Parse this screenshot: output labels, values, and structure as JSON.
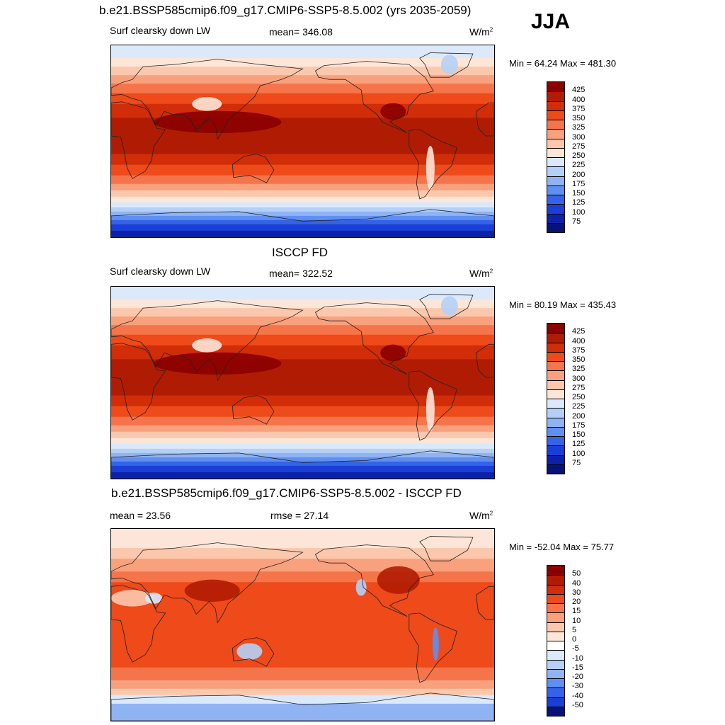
{
  "season": "JJA",
  "panels": [
    {
      "title": "b.e21.BSSP585cmip6.f09_g17.CMIP6-SSP5-8.5.002 (yrs 2035-2059)",
      "left_label": "Surf clearsky down LW",
      "center_label": "mean= 346.08",
      "units": "W/m",
      "units_sup": "2",
      "minmax": "Min =  64.24 Max = 481.30",
      "colorbar": {
        "labels": [
          "425",
          "400",
          "375",
          "350",
          "325",
          "300",
          "275",
          "250",
          "225",
          "200",
          "175",
          "150",
          "125",
          "100",
          "75"
        ],
        "colors": [
          "#8b0000",
          "#b01c03",
          "#d02d08",
          "#ee4a1a",
          "#f6744a",
          "#f9a07c",
          "#fcc8ad",
          "#fde6d8",
          "#dbe9fb",
          "#b5d0f7",
          "#8fb3f3",
          "#5f8ff0",
          "#3563e8",
          "#1a3fd6",
          "#0b22a8",
          "#06127a"
        ]
      },
      "map_style": "absolute"
    },
    {
      "title": "ISCCP FD",
      "left_label": "Surf clearsky down LW",
      "center_label": "mean= 322.52",
      "units": "W/m",
      "units_sup": "2",
      "minmax": "Min =  80.19 Max = 435.43",
      "colorbar": {
        "labels": [
          "425",
          "400",
          "375",
          "350",
          "325",
          "300",
          "275",
          "250",
          "225",
          "200",
          "175",
          "150",
          "125",
          "100",
          "75"
        ],
        "colors": [
          "#8b0000",
          "#b01c03",
          "#d02d08",
          "#ee4a1a",
          "#f6744a",
          "#f9a07c",
          "#fcc8ad",
          "#fde6d8",
          "#dbe9fb",
          "#b5d0f7",
          "#8fb3f3",
          "#5f8ff0",
          "#3563e8",
          "#1a3fd6",
          "#0b22a8",
          "#06127a"
        ]
      },
      "map_style": "absolute"
    },
    {
      "title": "b.e21.BSSP585cmip6.f09_g17.CMIP6-SSP5-8.5.002 - ISCCP FD",
      "left_label": "mean =  23.56",
      "center_label": "rmse =  27.14",
      "units": "W/m",
      "units_sup": "2",
      "minmax": "Min = -52.04 Max =  75.77",
      "colorbar": {
        "labels": [
          "50",
          "40",
          "30",
          "20",
          "15",
          "10",
          "5",
          "0",
          "-5",
          "-10",
          "-15",
          "-20",
          "-30",
          "-40",
          "-50"
        ],
        "colors": [
          "#8b0000",
          "#b01c03",
          "#d02d08",
          "#ee4a1a",
          "#f6744a",
          "#f9a07c",
          "#fcc8ad",
          "#fde6d8",
          "#ffffff",
          "#dbe9fb",
          "#b5d0f7",
          "#8fb3f3",
          "#5f8ff0",
          "#3563e8",
          "#1a3fd6",
          "#06127a"
        ]
      },
      "map_style": "difference"
    }
  ]
}
